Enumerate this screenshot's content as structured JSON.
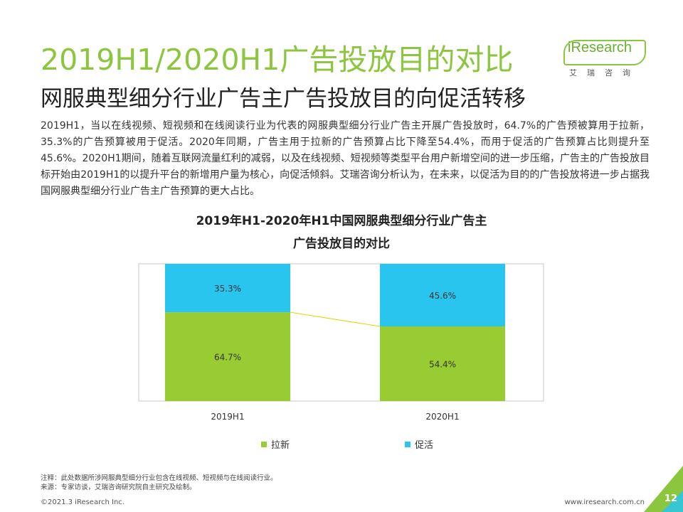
{
  "title": "2019H1/2020H1广告投放目的对比",
  "subtitle": "网服典型细分行业广告主广告投放目的向促活转移",
  "body": "2019H1，当以在线视频、短视频和在线阅读行业为代表的网服典型细分行业广告主开展广告投放时，64.7%的广告预被算用于拉新，35.3%的广告预算被用于促活。2020年同期，广告主用于拉新的广告预算占比下降至54.4%，而用于促活的广告预算占比则提升至45.6%。2020H1期间，随着互联网流量红利的减弱，以及在线视频、短视频等类型平台用户新增空间的进一步压缩，广告主的广告投放目标开始由2019H1的以提升平台的新增用户量为核心，向促活倾斜。艾瑞咨询分析认为，在未来，以促活为目的的广告投放将进一步占据我国网服典型细分行业广告主广告预算的更大占比。",
  "logo": {
    "text": "iResearch",
    "cn": "艾瑞咨询"
  },
  "colors": {
    "accent": "#8cc63e",
    "lashin": "#99cc33",
    "cuhuo": "#29c5ef"
  },
  "chart_data": {
    "type": "bar",
    "stacked": true,
    "percent": true,
    "title_line1": "2019年H1-2020年H1中国网服典型细分行业广告主",
    "title_line2": "广告投放目的对比",
    "categories": [
      "2019H1",
      "2020H1"
    ],
    "series": [
      {
        "name": "拉新",
        "values": [
          64.7,
          54.4
        ],
        "labels": [
          "64.7%",
          "54.4%"
        ],
        "color": "#99cc33"
      },
      {
        "name": "促活",
        "values": [
          35.3,
          45.6
        ],
        "labels": [
          "35.3%",
          "45.6%"
        ],
        "color": "#29c5ef"
      }
    ],
    "ylim": [
      0,
      100
    ],
    "legend": "bottom"
  },
  "footnotes": {
    "note": "注释：此处数据所涉网服典型细分行业包含在线视频、短视频与在线阅读行业。",
    "source": "来源：专家访谈，艾瑞咨询研究院自主研究及绘制。"
  },
  "footer": {
    "copyright": "©2021.3 iResearch Inc.",
    "website": "www.iresearch.com.cn",
    "page": "12"
  }
}
